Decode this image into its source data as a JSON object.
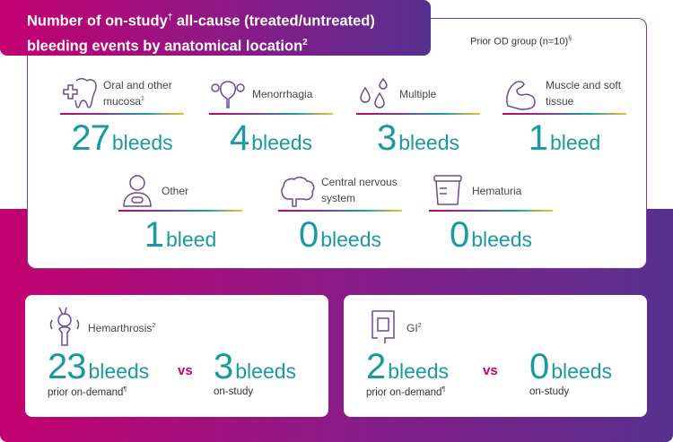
{
  "title": {
    "line1": "Number of on-study",
    "mark1": "†",
    "line1b": " all-cause (treated/untreated)",
    "line2": "bleeding events by anatomical location",
    "mark2": "2"
  },
  "group": {
    "label": "Prior OD group (n=10)",
    "mark": "§"
  },
  "colors": {
    "teal": "#1a9aa0",
    "pink": "#c4006f",
    "purple": "#56308f"
  },
  "locations": [
    {
      "label": "Oral and other mucosa",
      "mark": "‡",
      "value": "27",
      "unit": "bleeds",
      "icon": "tooth-cross-icon"
    },
    {
      "label": "Menorrhagia",
      "mark": "",
      "value": "4",
      "unit": "bleeds",
      "icon": "uterus-icon"
    },
    {
      "label": "Multiple",
      "mark": "",
      "value": "3",
      "unit": "bleeds",
      "icon": "drops-icon"
    },
    {
      "label": "Muscle and soft tissue",
      "mark": "",
      "value": "1",
      "unit": "bleed",
      "icon": "muscle-icon"
    },
    {
      "label": "Other",
      "mark": "",
      "value": "1",
      "unit": "bleed",
      "icon": "person-icon"
    },
    {
      "label": "Central nervous system",
      "mark": "",
      "value": "0",
      "unit": "bleeds",
      "icon": "brain-icon"
    },
    {
      "label": "Hematuria",
      "mark": "",
      "value": "0",
      "unit": "bleeds",
      "icon": "urine-cup-icon"
    }
  ],
  "comparisons": [
    {
      "label": "Hemarthrosis",
      "mark": "2",
      "prior_value": "23",
      "prior_unit": "bleeds",
      "prior_label": "prior on-demand",
      "prior_mark": "¶",
      "vs": "vs",
      "study_value": "3",
      "study_unit": "bleeds",
      "study_label": "on-study",
      "icon": "knee-joint-icon"
    },
    {
      "label": "GI",
      "mark": "2",
      "prior_value": "2",
      "prior_unit": "bleeds",
      "prior_label": "prior on-demand",
      "prior_mark": "¶",
      "vs": "vs",
      "study_value": "0",
      "study_unit": "bleeds",
      "study_label": "on-study",
      "icon": "intestine-icon"
    }
  ]
}
